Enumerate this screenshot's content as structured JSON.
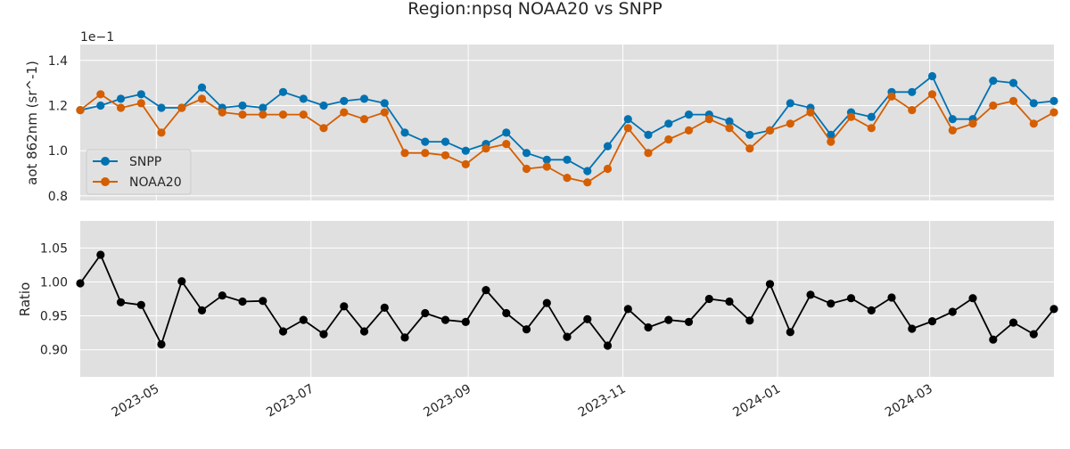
{
  "chart_data": {
    "type": "line",
    "title": "Region:npsq NOAA20 vs SNPP",
    "x": [
      "2023-04-01",
      "2023-04-09",
      "2023-04-17",
      "2023-04-25",
      "2023-05-03",
      "2023-05-11",
      "2023-05-19",
      "2023-05-27",
      "2023-06-04",
      "2023-06-12",
      "2023-06-20",
      "2023-06-28",
      "2023-07-06",
      "2023-07-14",
      "2023-07-22",
      "2023-07-30",
      "2023-08-07",
      "2023-08-15",
      "2023-08-23",
      "2023-08-31",
      "2023-09-08",
      "2023-09-16",
      "2023-09-24",
      "2023-10-02",
      "2023-10-10",
      "2023-10-18",
      "2023-10-26",
      "2023-11-03",
      "2023-11-11",
      "2023-11-19",
      "2023-11-27",
      "2023-12-05",
      "2023-12-13",
      "2023-12-21",
      "2023-12-29",
      "2024-01-06",
      "2024-01-14",
      "2024-01-22",
      "2024-01-30",
      "2024-02-07",
      "2024-02-15",
      "2024-02-23",
      "2024-03-02",
      "2024-03-10",
      "2024-03-18",
      "2024-03-26",
      "2024-04-03",
      "2024-04-11",
      "2024-04-19"
    ],
    "x_ticks": [
      "2023-05",
      "2023-07",
      "2023-09",
      "2023-11",
      "2024-01",
      "2024-03"
    ],
    "panels": [
      {
        "ylabel": "aot 862nm (sr^-1)",
        "offset_text": "1e−1",
        "ylim": [
          0.78,
          1.47
        ],
        "yticks": [
          0.8,
          1.0,
          1.2,
          1.4
        ],
        "ytick_labels": [
          "0.8",
          "1.0",
          "1.2",
          "1.4"
        ],
        "legend_position": "center-left",
        "series": [
          {
            "name": "SNPP",
            "color": "#0072B2",
            "values": [
              1.18,
              1.2,
              1.23,
              1.25,
              1.19,
              1.19,
              1.28,
              1.19,
              1.2,
              1.19,
              1.26,
              1.23,
              1.2,
              1.22,
              1.23,
              1.21,
              1.08,
              1.04,
              1.04,
              1.0,
              1.03,
              1.08,
              0.99,
              0.96,
              0.96,
              0.91,
              1.02,
              1.14,
              1.07,
              1.12,
              1.16,
              1.16,
              1.13,
              1.07,
              1.09,
              1.21,
              1.19,
              1.07,
              1.17,
              1.15,
              1.26,
              1.26,
              1.33,
              1.14,
              1.14,
              1.31,
              1.3,
              1.21,
              1.22
            ]
          },
          {
            "name": "NOAA20",
            "color": "#D55E00",
            "values": [
              1.18,
              1.25,
              1.19,
              1.21,
              1.08,
              1.19,
              1.23,
              1.17,
              1.16,
              1.16,
              1.16,
              1.16,
              1.1,
              1.17,
              1.14,
              1.17,
              0.99,
              0.99,
              0.98,
              0.94,
              1.01,
              1.03,
              0.92,
              0.93,
              0.88,
              0.86,
              0.92,
              1.1,
              0.99,
              1.05,
              1.09,
              1.14,
              1.1,
              1.01,
              1.09,
              1.12,
              1.17,
              1.04,
              1.15,
              1.1,
              1.24,
              1.18,
              1.25,
              1.09,
              1.12,
              1.2,
              1.22,
              1.12,
              1.17
            ]
          }
        ]
      },
      {
        "ylabel": "Ratio",
        "ylim": [
          0.86,
          1.09
        ],
        "yticks": [
          0.9,
          0.95,
          1.0,
          1.05
        ],
        "ytick_labels": [
          "0.90",
          "0.95",
          "1.00",
          "1.05"
        ],
        "series": [
          {
            "name": "Ratio",
            "color": "#000000",
            "values": [
              0.998,
              1.04,
              0.97,
              0.966,
              0.908,
              1.001,
              0.958,
              0.98,
              0.971,
              0.972,
              0.927,
              0.944,
              0.923,
              0.964,
              0.927,
              0.962,
              0.918,
              0.954,
              0.944,
              0.941,
              0.988,
              0.954,
              0.93,
              0.969,
              0.919,
              0.945,
              0.906,
              0.96,
              0.933,
              0.944,
              0.941,
              0.975,
              0.971,
              0.943,
              0.997,
              0.926,
              0.981,
              0.968,
              0.976,
              0.958,
              0.977,
              0.931,
              0.942,
              0.956,
              0.976,
              0.915,
              0.94,
              0.923,
              0.96
            ]
          }
        ]
      }
    ]
  }
}
